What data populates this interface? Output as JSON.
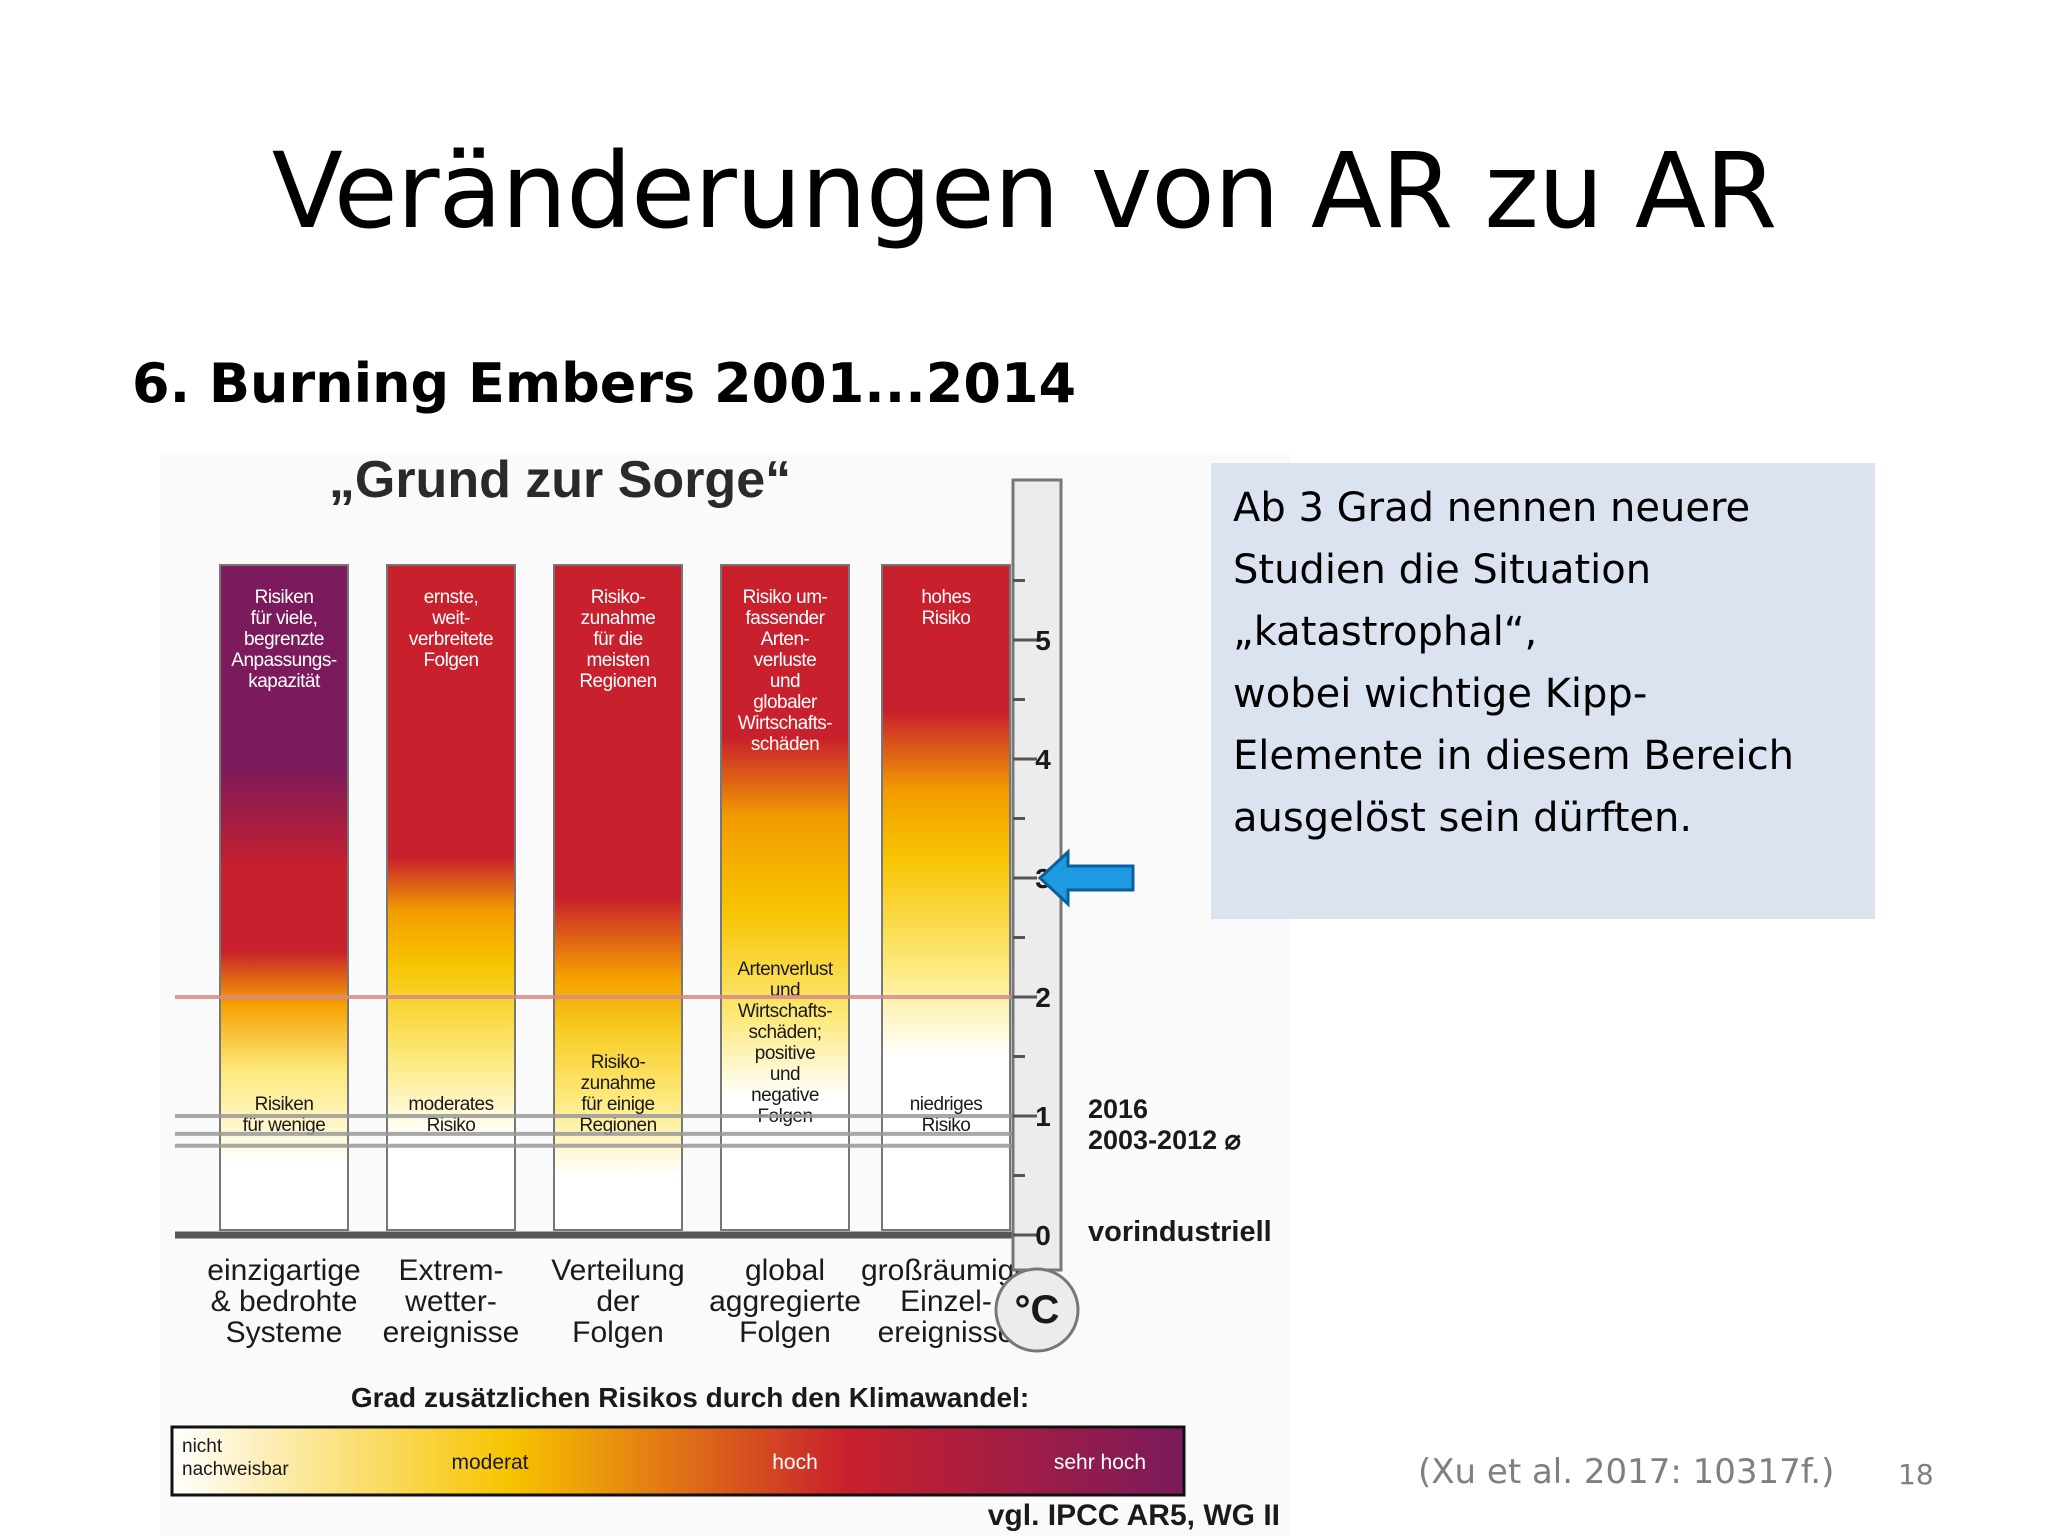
{
  "slide": {
    "title": "Veränderungen von AR zu AR",
    "subtitle": "6. Burning Embers 2001...2014",
    "page_number": "18",
    "source": "(Xu et al. 2017: 10317f.)"
  },
  "info_box": {
    "lines": [
      "Ab 3 Grad nennen neuere",
      "Studien die Situation",
      "„katastrophal“,",
      "wobei wichtige Kipp-",
      "Elemente in diesem Bereich",
      "ausgelöst sein dürften."
    ]
  },
  "figure": {
    "title": "„Grund zur Sorge“",
    "columns": [
      {
        "top_label": [
          "Risiken",
          "für viele,",
          "begrenzte",
          "Anpassungs-",
          "kapazität"
        ],
        "mid_label": [],
        "bottom_label": [
          "Risiken",
          "für wenige"
        ],
        "category": [
          "einzigartige",
          "& bedrohte",
          "Systeme"
        ],
        "stops": [
          {
            "t": 0.0,
            "color": "#7b1a5c"
          },
          {
            "t": 1.5,
            "color": "#7b1a5c"
          },
          {
            "t": 2.3,
            "color": "#c8202c"
          },
          {
            "t": 2.9,
            "color": "#c8202c"
          },
          {
            "t": 3.3,
            "color": "#f5a000"
          },
          {
            "t": 3.8,
            "color": "#fde97a"
          },
          {
            "t": 4.5,
            "color": "#ffffff"
          }
        ]
      },
      {
        "top_label": [
          "ernste,",
          "weit-",
          "verbreitete",
          "Folgen"
        ],
        "mid_label": [],
        "bottom_label": [
          "moderates",
          "Risiko"
        ],
        "category": [
          "Extrem-",
          "wetter-",
          "ereignisse"
        ],
        "stops": [
          {
            "t": 0.0,
            "color": "#c8202c"
          },
          {
            "t": 2.2,
            "color": "#c8202c"
          },
          {
            "t": 2.6,
            "color": "#f39c00"
          },
          {
            "t": 3.0,
            "color": "#f7c400"
          },
          {
            "t": 3.7,
            "color": "#fde97a"
          },
          {
            "t": 4.3,
            "color": "#ffffff"
          }
        ]
      },
      {
        "top_label": [
          "Risiko-",
          "zunahme",
          "für die",
          "meisten",
          "Regionen"
        ],
        "mid_label": [],
        "bottom_label": [
          "Risiko-",
          "zunahme",
          "für einige",
          "Regionen"
        ],
        "category": [
          "Verteilung",
          "der",
          "Folgen"
        ],
        "stops": [
          {
            "t": 0.0,
            "color": "#c8202c"
          },
          {
            "t": 2.5,
            "color": "#c8202c"
          },
          {
            "t": 3.1,
            "color": "#f5a000"
          },
          {
            "t": 3.5,
            "color": "#f8cc22"
          },
          {
            "t": 4.0,
            "color": "#fde97a"
          },
          {
            "t": 4.6,
            "color": "#ffffff"
          }
        ]
      },
      {
        "top_label": [
          "Risiko um-",
          "fassender",
          "Arten-",
          "verluste",
          "und",
          "globaler",
          "Wirtschafts-",
          "schäden"
        ],
        "mid_label": [
          "Artenverlust",
          "und",
          "Wirtschafts-",
          "schäden;",
          "positive",
          "und",
          "negative",
          "Folgen"
        ],
        "bottom_label": [],
        "category": [
          "global",
          "aggregierte",
          "Folgen"
        ],
        "stops": [
          {
            "t": 0.0,
            "color": "#c8202c"
          },
          {
            "t": 1.3,
            "color": "#c8202c"
          },
          {
            "t": 1.9,
            "color": "#f39c00"
          },
          {
            "t": 2.6,
            "color": "#f7c400"
          },
          {
            "t": 3.4,
            "color": "#fde97a"
          },
          {
            "t": 4.0,
            "color": "#ffffff"
          }
        ]
      },
      {
        "top_label": [
          "hohes",
          "Risiko"
        ],
        "mid_label": [],
        "bottom_label": [
          "niedriges",
          "Risiko"
        ],
        "category": [
          "großräumige",
          "Einzel-",
          "ereignisse"
        ],
        "stops": [
          {
            "t": 0.0,
            "color": "#c8202c"
          },
          {
            "t": 1.1,
            "color": "#c8202c"
          },
          {
            "t": 1.7,
            "color": "#f39c00"
          },
          {
            "t": 2.2,
            "color": "#f7c400"
          },
          {
            "t": 3.0,
            "color": "#fde97a"
          },
          {
            "t": 3.7,
            "color": "#ffffff"
          }
        ]
      }
    ],
    "thermometer": {
      "ticks": [
        "0",
        "1",
        "2",
        "3",
        "4",
        "5"
      ],
      "unit": "°C",
      "labels": {
        "zero": "vorindustriell",
        "line_2016": "2016",
        "line_2003": "2003-2012 ⌀"
      },
      "arrow_at": 3,
      "reference_lines": [
        {
          "value": 2.0,
          "color": "#d98a8a"
        },
        {
          "value": 1.0,
          "color": "#9a9a9a"
        },
        {
          "value": 0.85,
          "color": "#9a9a9a"
        },
        {
          "value": 0.75,
          "color": "#9a9a9a"
        }
      ]
    },
    "legend": {
      "title": "Grad zusätzlichen Risikos durch den Klimawandel:",
      "labels": [
        "nicht nachweisbar",
        "moderat",
        "hoch",
        "sehr hoch"
      ],
      "colors": [
        "#ffffff",
        "#f7c400",
        "#c8202c",
        "#7b1a5c"
      ]
    },
    "footnote": "vgl. IPCC AR5, WG II"
  }
}
